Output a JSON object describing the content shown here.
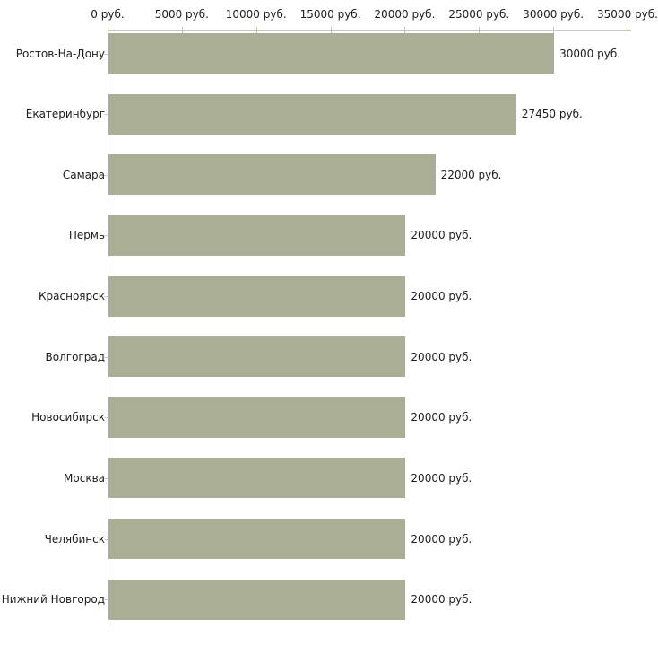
{
  "chart_data": {
    "type": "bar",
    "orientation": "horizontal",
    "title": "",
    "xlabel": "",
    "ylabel": "",
    "categories": [
      "Ростов-На-Дону",
      "Екатеринбург",
      "Самара",
      "Пермь",
      "Красноярск",
      "Волгоград",
      "Новосибирск",
      "Москва",
      "Челябинск",
      "Нижний Новгород"
    ],
    "values": [
      30000,
      27450,
      22000,
      20000,
      20000,
      20000,
      20000,
      20000,
      20000,
      20000
    ],
    "value_labels": [
      "30000 руб.",
      "27450 руб.",
      "22000 руб.",
      "20000 руб.",
      "20000 руб.",
      "20000 руб.",
      "20000 руб.",
      "20000 руб.",
      "20000 руб.",
      "20000 руб."
    ],
    "xlim": [
      0,
      35000
    ],
    "x_ticks": [
      0,
      5000,
      10000,
      15000,
      20000,
      25000,
      30000,
      35000
    ],
    "x_tick_labels": [
      "0 руб.",
      "5000 руб.",
      "10000 руб.",
      "15000 руб.",
      "20000 руб.",
      "25000 руб.",
      "30000 руб.",
      "35000 руб."
    ],
    "grid": false,
    "legend_position": "none",
    "colors": {
      "bar": "#a9ae94",
      "axis_line": "#c6c6c6",
      "axis_tick": "#c9c9a2",
      "category_tick": "#cfcfcf",
      "text": "#1c1c1c",
      "background": "#ffffff"
    }
  }
}
